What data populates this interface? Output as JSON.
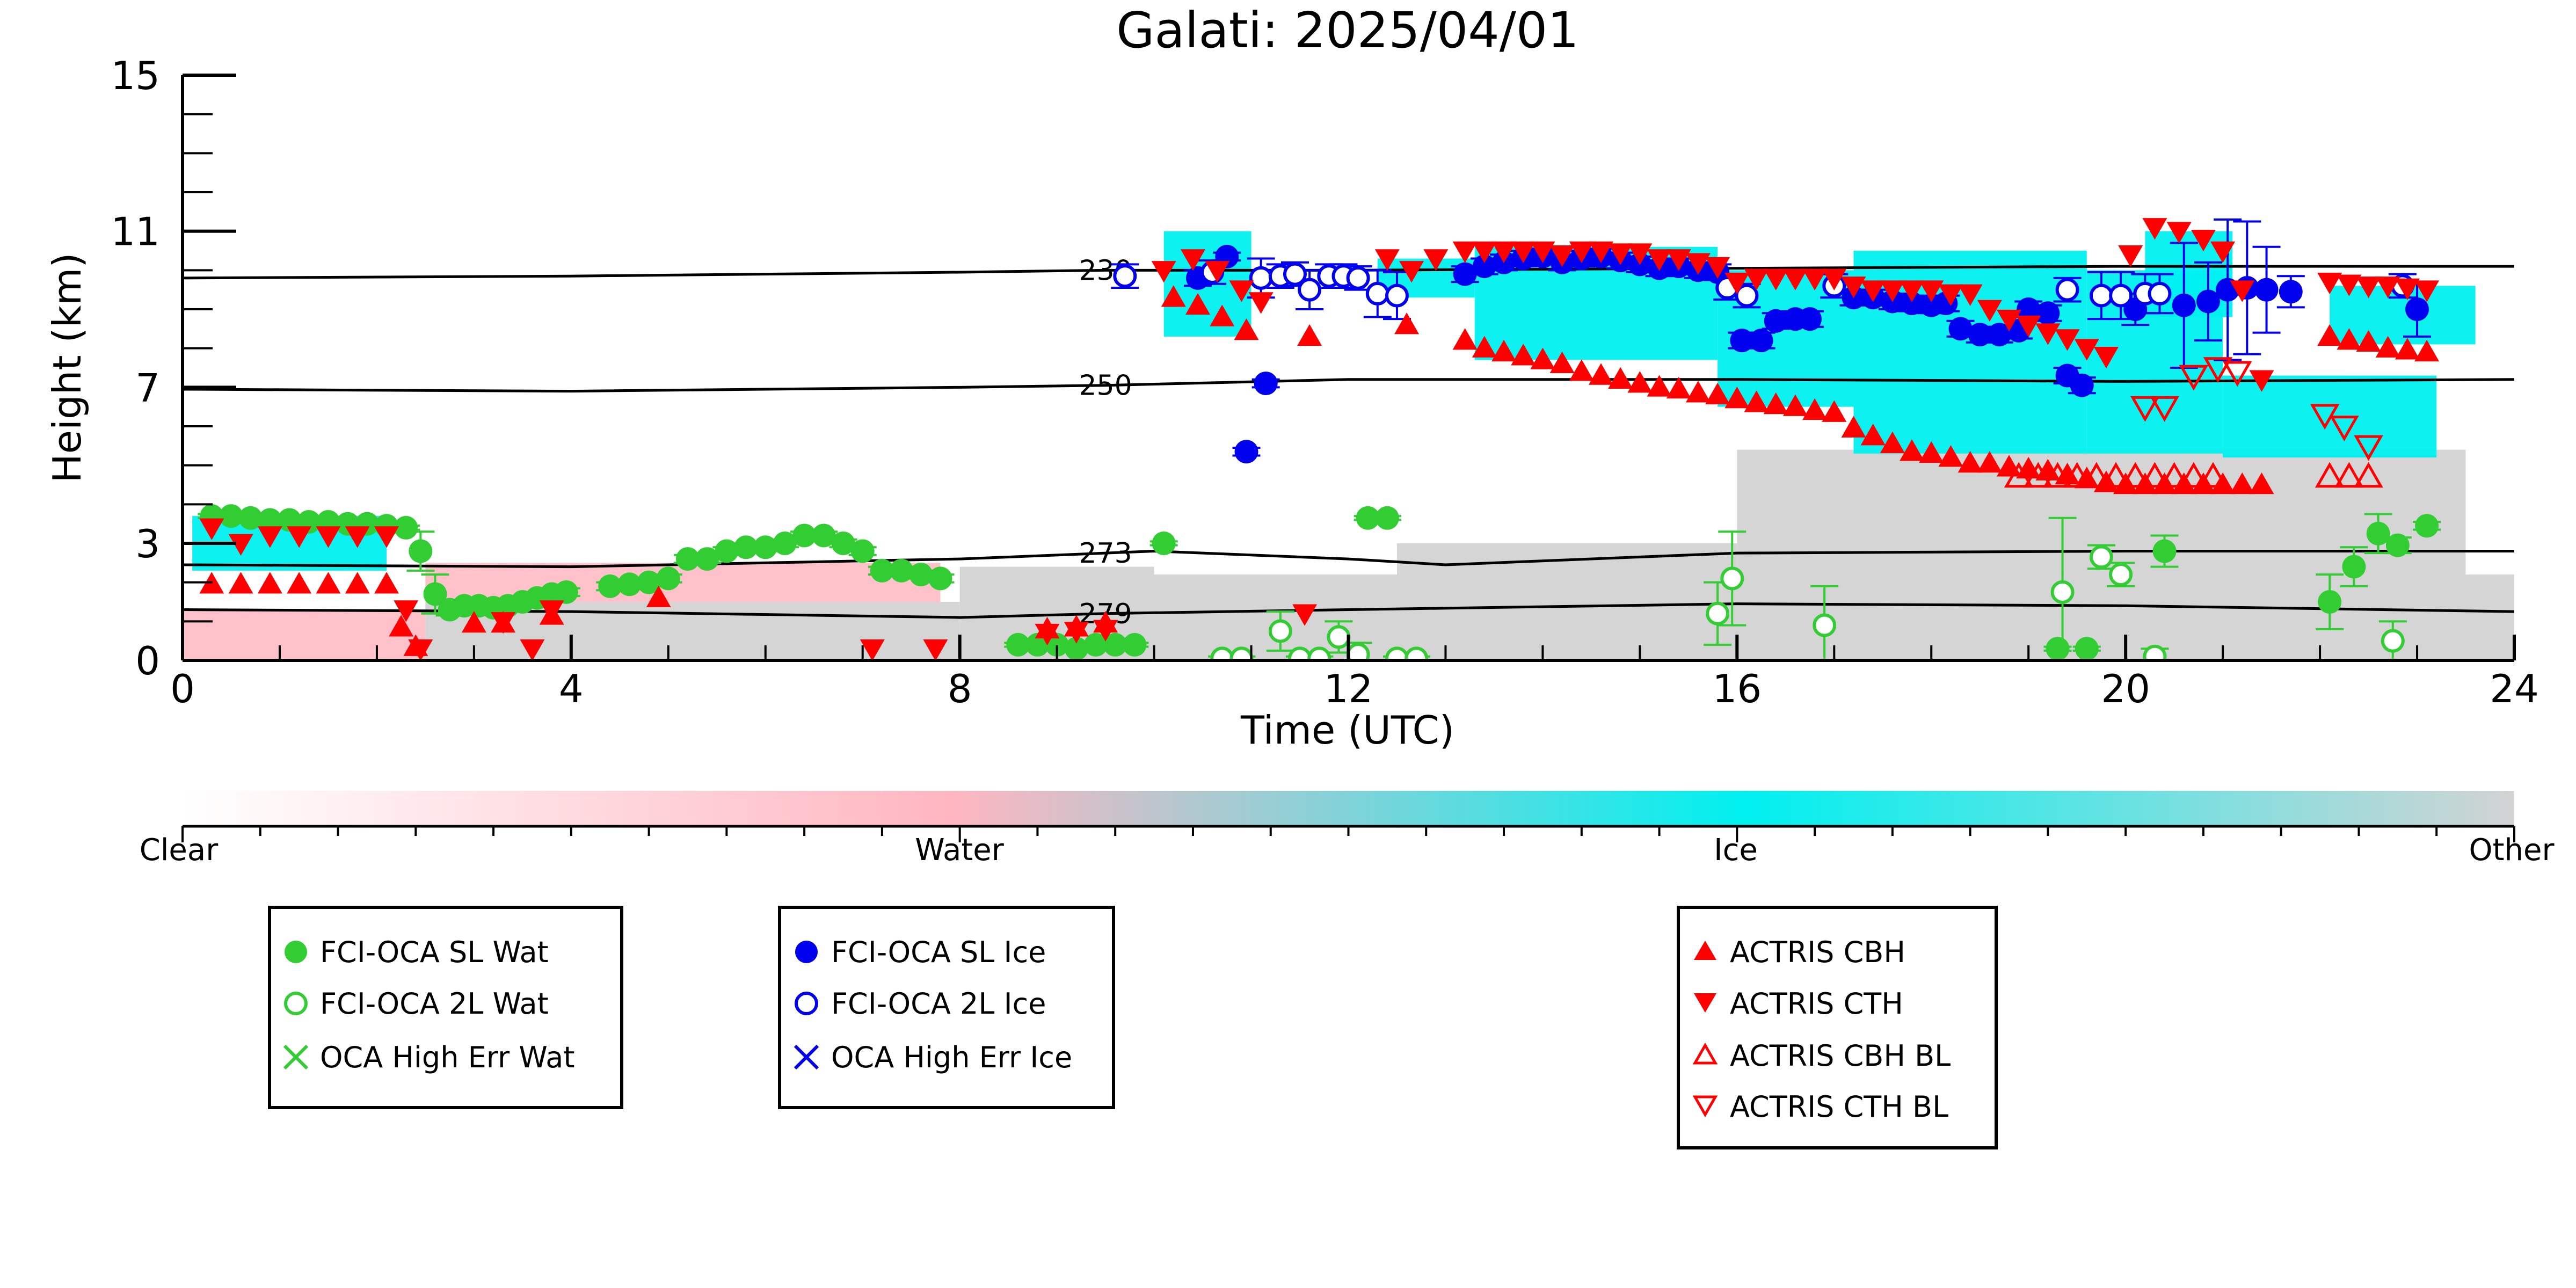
{
  "chart_data": {
    "type": "scatter",
    "title": "Galati: 2025/04/01",
    "xlabel": "Time (UTC)",
    "ylabel": "Height (km)",
    "xlim": [
      0,
      24
    ],
    "ylim": [
      0,
      15
    ],
    "x_ticks": [
      0,
      4,
      8,
      12,
      16,
      20,
      24
    ],
    "y_ticks": [
      0,
      3,
      7,
      11,
      15
    ],
    "grid": false,
    "colorbar": {
      "labels": [
        "Clear",
        "Water",
        "Ice",
        "Other"
      ],
      "colors": {
        "clear": "#ffffff",
        "water": "#ffb6c1",
        "ice": "#00f0f0",
        "other": "#d3d3d3"
      }
    },
    "isotherms": [
      {
        "label": "230",
        "x": [
          0,
          4,
          8,
          9.5,
          12,
          16,
          20,
          24
        ],
        "y": [
          9.8,
          9.85,
          9.95,
          10.0,
          10.0,
          10.05,
          10.1,
          10.1
        ]
      },
      {
        "label": "250",
        "x": [
          0,
          4,
          8,
          9.5,
          12,
          16,
          20,
          24
        ],
        "y": [
          6.95,
          6.9,
          7.0,
          7.05,
          7.2,
          7.2,
          7.15,
          7.2
        ]
      },
      {
        "label": "273",
        "x": [
          0,
          4,
          8,
          9.5,
          10,
          12,
          13,
          16,
          20,
          24
        ],
        "y": [
          2.45,
          2.4,
          2.6,
          2.75,
          2.8,
          2.6,
          2.45,
          2.75,
          2.8,
          2.8
        ]
      },
      {
        "label": "279",
        "x": [
          0,
          4,
          8,
          9.5,
          12,
          16,
          20,
          24
        ],
        "y": [
          1.3,
          1.25,
          1.1,
          1.2,
          1.3,
          1.45,
          1.4,
          1.25
        ]
      }
    ],
    "background_regions": [
      {
        "type": "other",
        "x": [
          2.5,
          8.0
        ],
        "y": [
          0,
          1.5
        ]
      },
      {
        "type": "other",
        "x": [
          8.0,
          10.0
        ],
        "y": [
          0,
          2.4
        ]
      },
      {
        "type": "other",
        "x": [
          10.0,
          24.0
        ],
        "y": [
          0,
          2.2
        ]
      },
      {
        "type": "other",
        "x": [
          12.5,
          16.0
        ],
        "y": [
          2.2,
          3.0
        ]
      },
      {
        "type": "other",
        "x": [
          16.0,
          23.5
        ],
        "y": [
          2.2,
          5.4
        ]
      },
      {
        "type": "water",
        "x": [
          0,
          2.5
        ],
        "y": [
          0,
          1.3
        ]
      },
      {
        "type": "water",
        "x": [
          2.5,
          7.8
        ],
        "y": [
          1.5,
          2.5
        ]
      },
      {
        "type": "ice",
        "x": [
          0.1,
          2.1
        ],
        "y": [
          2.3,
          3.7
        ]
      },
      {
        "type": "ice",
        "x": [
          10.1,
          11.0
        ],
        "y": [
          8.3,
          11.0
        ]
      },
      {
        "type": "ice",
        "x": [
          12.3,
          13.3
        ],
        "y": [
          9.3,
          10.3
        ]
      },
      {
        "type": "ice",
        "x": [
          13.3,
          15.8
        ],
        "y": [
          7.7,
          10.6
        ]
      },
      {
        "type": "ice",
        "x": [
          15.8,
          17.2
        ],
        "y": [
          6.5,
          10.0
        ]
      },
      {
        "type": "ice",
        "x": [
          17.2,
          19.6
        ],
        "y": [
          5.3,
          10.5
        ]
      },
      {
        "type": "ice",
        "x": [
          19.6,
          21.0
        ],
        "y": [
          5.3,
          10.0
        ]
      },
      {
        "type": "ice",
        "x": [
          20.2,
          21.1
        ],
        "y": [
          8.8,
          11.0
        ]
      },
      {
        "type": "ice",
        "x": [
          21.0,
          23.2
        ],
        "y": [
          5.2,
          7.3
        ]
      },
      {
        "type": "ice",
        "x": [
          22.1,
          23.6
        ],
        "y": [
          8.1,
          9.6
        ]
      }
    ],
    "series": [
      {
        "name": "FCI-OCA SL Wat",
        "marker": "circle-filled",
        "color": "#32cd32",
        "x": [
          0.3,
          0.5,
          0.7,
          0.9,
          1.1,
          1.3,
          1.5,
          1.7,
          1.9,
          2.1,
          2.3,
          2.45,
          2.6,
          2.75,
          2.9,
          3.05,
          3.2,
          3.35,
          3.5,
          3.65,
          3.8,
          3.95,
          4.4,
          4.6,
          4.8,
          5.0,
          5.2,
          5.4,
          5.6,
          5.8,
          6.0,
          6.2,
          6.4,
          6.6,
          6.8,
          7.0,
          7.2,
          7.4,
          7.6,
          7.8,
          8.6,
          8.8,
          9.0,
          9.2,
          9.4,
          9.6,
          9.8,
          10.1,
          12.2,
          12.4,
          19.3,
          19.6,
          20.4,
          22.1,
          22.35,
          22.6,
          22.8,
          23.1
        ],
        "y": [
          3.7,
          3.7,
          3.65,
          3.6,
          3.6,
          3.55,
          3.55,
          3.5,
          3.5,
          3.45,
          3.4,
          2.8,
          1.7,
          1.3,
          1.4,
          1.4,
          1.35,
          1.4,
          1.5,
          1.6,
          1.7,
          1.75,
          1.9,
          1.95,
          2.0,
          2.1,
          2.6,
          2.6,
          2.8,
          2.9,
          2.9,
          3.0,
          3.2,
          3.2,
          3.0,
          2.8,
          2.3,
          2.3,
          2.2,
          2.1,
          0.4,
          0.4,
          0.4,
          0.3,
          0.4,
          0.4,
          0.4,
          3.0,
          3.65,
          3.65,
          0.3,
          0.3,
          2.8,
          1.5,
          2.4,
          3.25,
          2.95,
          3.45
        ],
        "error": [
          0.05,
          0.05,
          0.05,
          0.05,
          0.05,
          0.05,
          0.05,
          0.05,
          0.05,
          0.05,
          0.05,
          0.5,
          0.5,
          0.15,
          0.1,
          0.1,
          0.1,
          0.1,
          0.1,
          0.1,
          0.1,
          0.1,
          0.1,
          0.1,
          0.1,
          0.1,
          0.1,
          0.1,
          0.1,
          0.1,
          0.1,
          0.1,
          0.1,
          0.1,
          0.1,
          0.1,
          0.1,
          0.1,
          0.1,
          0.1,
          0.05,
          0.05,
          0.05,
          0.05,
          0.05,
          0.05,
          0.05,
          0.05,
          0.05,
          0.05,
          0.05,
          0.05,
          0.4,
          0.7,
          0.5,
          0.5,
          0.2,
          0.1
        ]
      },
      {
        "name": "FCI-OCA 2L Wat",
        "marker": "circle-open",
        "color": "#32cd32",
        "x": [
          10.7,
          10.9,
          11.3,
          11.5,
          11.7,
          11.9,
          12.1,
          12.5,
          12.7,
          15.8,
          15.95,
          16.9,
          19.35,
          19.75,
          19.95,
          20.3,
          22.75
        ],
        "y": [
          0.05,
          0.05,
          0.75,
          0.05,
          0.05,
          0.6,
          0.15,
          0.05,
          0.05,
          1.2,
          2.1,
          0.9,
          1.75,
          2.65,
          2.2,
          0.1,
          0.5
        ],
        "error": [
          0.05,
          0.05,
          0.5,
          0.05,
          0.05,
          0.4,
          0.3,
          0.05,
          0.05,
          0.8,
          1.2,
          1.0,
          1.9,
          0.3,
          0.3,
          0.2,
          0.5
        ]
      },
      {
        "name": "OCA High Err Wat",
        "marker": "x",
        "color": "#32cd32",
        "x": [],
        "y": []
      },
      {
        "name": "FCI-OCA SL Ice",
        "marker": "circle-filled",
        "color": "#0000ee",
        "x": [
          10.45,
          10.75,
          10.95,
          11.15,
          13.2,
          13.4,
          13.6,
          13.8,
          14.0,
          14.2,
          14.4,
          14.6,
          14.8,
          15.0,
          15.2,
          15.4,
          15.6,
          15.8,
          16.05,
          16.25,
          16.4,
          16.6,
          16.75,
          17.2,
          17.4,
          17.6,
          17.8,
          18.0,
          18.15,
          18.3,
          18.5,
          18.7,
          18.9,
          19.0,
          19.2,
          19.4,
          19.55,
          20.1,
          20.6,
          20.85,
          21.05,
          21.25,
          21.45,
          21.7,
          23.0
        ],
        "y": [
          9.8,
          10.35,
          5.35,
          7.1,
          9.9,
          10.1,
          10.2,
          10.3,
          10.35,
          10.2,
          10.3,
          10.35,
          10.25,
          10.15,
          10.05,
          10.1,
          10.0,
          9.95,
          8.2,
          8.2,
          8.7,
          8.75,
          8.75,
          9.3,
          9.3,
          9.2,
          9.15,
          9.1,
          9.15,
          8.5,
          8.35,
          8.35,
          8.45,
          9.0,
          8.9,
          7.3,
          7.05,
          9.0,
          9.1,
          9.2,
          9.5,
          9.55,
          9.5,
          9.45,
          9.0
        ],
        "error": [
          0.2,
          0.1,
          0.1,
          0.1,
          0.2,
          0.2,
          0.2,
          0.2,
          0.2,
          0.2,
          0.2,
          0.2,
          0.2,
          0.2,
          0.2,
          0.2,
          0.2,
          0.2,
          0.2,
          0.2,
          0.2,
          0.2,
          0.2,
          0.2,
          0.2,
          0.2,
          0.2,
          0.2,
          0.2,
          0.2,
          0.2,
          0.2,
          0.2,
          0.2,
          0.2,
          0.2,
          0.2,
          0.4,
          1.6,
          1.0,
          1.8,
          1.7,
          1.1,
          0.4,
          0.7
        ]
      },
      {
        "name": "FCI-OCA 2L Ice",
        "marker": "circle-open",
        "color": "#0000ee",
        "x": [
          9.7,
          10.6,
          11.1,
          11.3,
          11.45,
          11.6,
          11.8,
          11.95,
          12.1,
          12.3,
          12.5,
          15.9,
          16.1,
          17.0,
          19.4,
          19.75,
          19.95,
          20.2,
          20.35,
          22.85
        ],
        "y": [
          9.85,
          9.95,
          9.8,
          9.85,
          9.9,
          9.5,
          9.85,
          9.85,
          9.8,
          9.4,
          9.35,
          9.55,
          9.35,
          9.6,
          9.5,
          9.35,
          9.35,
          9.4,
          9.4,
          9.6
        ],
        "error": [
          0.3,
          0.3,
          0.5,
          0.3,
          0.3,
          0.5,
          0.3,
          0.3,
          0.3,
          0.6,
          0.6,
          0.3,
          0.3,
          0.3,
          0.3,
          0.6,
          0.6,
          0.5,
          0.5,
          0.3
        ]
      },
      {
        "name": "OCA High Err Ice",
        "marker": "x",
        "color": "#0000ee",
        "x": [],
        "y": []
      },
      {
        "name": "ACTRIS CBH",
        "marker": "triangle-up-filled",
        "color": "#ff0000",
        "x": [
          0.3,
          0.6,
          0.9,
          1.2,
          1.5,
          1.8,
          2.1,
          2.25,
          2.4,
          3.0,
          3.3,
          3.8,
          4.9,
          8.9,
          9.2,
          9.5,
          10.2,
          10.45,
          10.7,
          10.95,
          11.6,
          12.6,
          13.2,
          13.4,
          13.6,
          13.8,
          14.0,
          14.2,
          14.4,
          14.6,
          14.8,
          15.0,
          15.2,
          15.4,
          15.6,
          15.8,
          16.0,
          16.2,
          16.4,
          16.6,
          16.8,
          17.0,
          17.2,
          17.4,
          17.6,
          17.8,
          18.0,
          18.2,
          18.4,
          18.6,
          18.8,
          19.0,
          19.2,
          19.4,
          19.6,
          19.8,
          20.0,
          20.2,
          20.4,
          20.6,
          20.8,
          21.0,
          21.2,
          21.4,
          22.1,
          22.3,
          22.5,
          22.7,
          22.9,
          23.1
        ],
        "y": [
          1.95,
          1.95,
          1.95,
          1.95,
          1.95,
          1.95,
          1.95,
          0.85,
          0.35,
          0.95,
          0.95,
          1.15,
          1.6,
          0.8,
          0.85,
          0.95,
          9.3,
          9.1,
          8.8,
          8.45,
          8.3,
          8.6,
          8.2,
          8.0,
          7.9,
          7.8,
          7.7,
          7.6,
          7.4,
          7.3,
          7.2,
          7.1,
          7.0,
          6.95,
          6.85,
          6.8,
          6.7,
          6.6,
          6.55,
          6.5,
          6.4,
          6.35,
          5.95,
          5.75,
          5.55,
          5.35,
          5.3,
          5.2,
          5.05,
          5.05,
          4.95,
          4.9,
          4.85,
          4.75,
          4.65,
          4.55,
          4.5,
          4.5,
          4.5,
          4.5,
          4.5,
          4.5,
          4.5,
          4.5,
          8.3,
          8.2,
          8.15,
          8.0,
          7.95,
          7.9
        ]
      },
      {
        "name": "ACTRIS CTH",
        "marker": "triangle-down-filled",
        "color": "#ff0000",
        "x": [
          0.3,
          0.6,
          0.9,
          1.2,
          1.5,
          1.8,
          2.1,
          2.3,
          2.45,
          3.3,
          3.6,
          3.8,
          7.1,
          7.75,
          8.9,
          9.2,
          9.5,
          10.1,
          10.4,
          10.65,
          10.9,
          11.1,
          11.55,
          12.4,
          12.65,
          12.9,
          13.2,
          13.4,
          13.6,
          13.8,
          14.0,
          14.2,
          14.4,
          14.6,
          14.8,
          15.0,
          15.2,
          15.4,
          15.6,
          15.8,
          16.0,
          16.2,
          16.4,
          16.6,
          16.8,
          17.0,
          17.2,
          17.4,
          17.6,
          17.8,
          18.0,
          18.2,
          18.4,
          18.6,
          18.8,
          19.0,
          19.2,
          19.4,
          19.6,
          19.8,
          20.05,
          20.3,
          20.55,
          20.8,
          21.0,
          21.2,
          21.4,
          22.1,
          22.3,
          22.5,
          22.7,
          22.9,
          23.1
        ],
        "y": [
          3.4,
          3.0,
          3.2,
          3.2,
          3.2,
          3.2,
          3.2,
          1.3,
          0.3,
          1.0,
          0.3,
          1.3,
          0.3,
          0.3,
          0.7,
          0.75,
          0.8,
          10.0,
          10.3,
          10.0,
          9.5,
          9.2,
          1.2,
          10.3,
          10.0,
          10.3,
          10.5,
          10.5,
          10.5,
          10.5,
          10.5,
          10.4,
          10.5,
          10.5,
          10.45,
          10.45,
          10.3,
          10.3,
          10.2,
          10.1,
          9.7,
          9.8,
          9.8,
          9.8,
          9.8,
          9.8,
          9.6,
          9.5,
          9.5,
          9.5,
          9.5,
          9.4,
          9.4,
          9.0,
          8.75,
          8.6,
          8.4,
          8.25,
          8.0,
          7.8,
          10.4,
          11.1,
          11.0,
          10.8,
          10.5,
          9.5,
          7.2,
          9.7,
          9.65,
          9.6,
          9.6,
          9.55,
          9.5
        ]
      },
      {
        "name": "ACTRIS CBH BL",
        "marker": "triangle-up-open",
        "color": "#ff0000",
        "x": [
          18.9,
          19.1,
          19.3,
          19.5,
          19.7,
          19.9,
          20.1,
          20.3,
          20.5,
          20.7,
          20.9,
          22.1,
          22.3,
          22.5
        ],
        "y": [
          4.7,
          4.7,
          4.7,
          4.7,
          4.7,
          4.7,
          4.7,
          4.7,
          4.7,
          4.7,
          4.7,
          4.7,
          4.7,
          4.7
        ]
      },
      {
        "name": "ACTRIS CTH BL",
        "marker": "triangle-down-open",
        "color": "#ff0000",
        "x": [
          20.2,
          20.4,
          20.7,
          20.95,
          21.15,
          22.05,
          22.25,
          22.5
        ],
        "y": [
          6.5,
          6.5,
          7.3,
          7.5,
          7.4,
          6.3,
          6.0,
          5.5
        ]
      }
    ]
  }
}
